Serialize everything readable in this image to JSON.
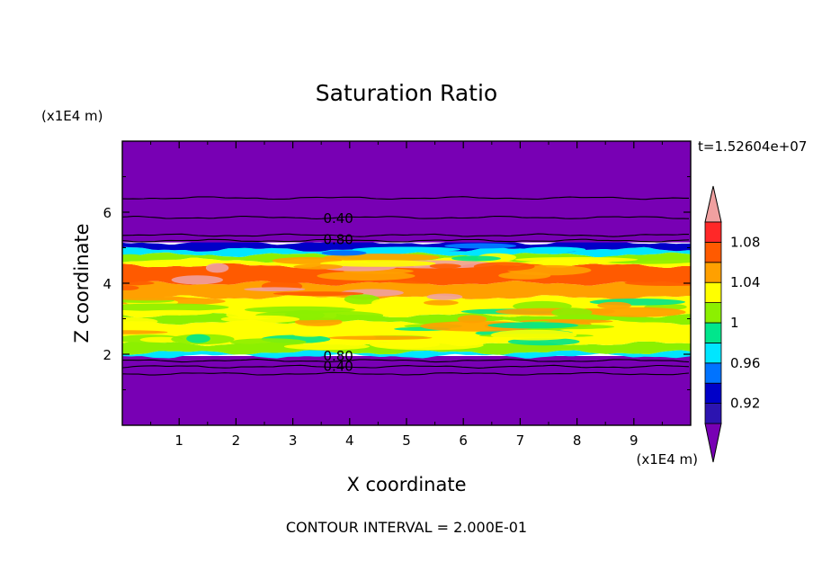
{
  "chart_data": {
    "type": "heatmap",
    "title": "Saturation Ratio",
    "xlabel": "X coordinate",
    "ylabel": "Z coordinate",
    "x_unit": "(x1E4 m)",
    "y_unit": "(x1E4 m)",
    "time_label": "t=1.52604e+07",
    "footer": "CONTOUR INTERVAL = 2.000E-01",
    "xlim": [
      0,
      10
    ],
    "ylim": [
      0,
      8
    ],
    "x_ticks": [
      1,
      2,
      3,
      4,
      5,
      6,
      7,
      8,
      9
    ],
    "y_ticks": [
      2,
      4,
      6
    ],
    "colorbar": {
      "levels": [
        0.9,
        0.92,
        0.94,
        0.96,
        0.98,
        1.0,
        1.02,
        1.04,
        1.06,
        1.08,
        1.1
      ],
      "labels": [
        {
          "value": 0.92,
          "text": "0.92"
        },
        {
          "value": 0.96,
          "text": "0.96"
        },
        {
          "value": 1.0,
          "text": "1"
        },
        {
          "value": 1.04,
          "text": "1.04"
        },
        {
          "value": 1.08,
          "text": "1.08"
        }
      ],
      "colors": [
        "#6a0aa8",
        "#2c14b0",
        "#0000c8",
        "#0073ff",
        "#00e6ff",
        "#00e68c",
        "#8cf000",
        "#ffff00",
        "#ffa000",
        "#ff5a00",
        "#ff2828"
      ],
      "under_color": "#7800b4",
      "over_color": "#f0a0a0"
    },
    "contour_labels": [
      {
        "text": "0.40",
        "x": 3.8,
        "z": 5.85
      },
      {
        "text": "0.80",
        "x": 3.8,
        "z": 5.25
      },
      {
        "text": "0.80",
        "x": 3.8,
        "z": 1.98
      },
      {
        "text": "0.40",
        "x": 3.8,
        "z": 1.68
      }
    ],
    "bands": [
      {
        "z0": 0.0,
        "z1": 1.95,
        "color": "#7800b4"
      },
      {
        "z0": 1.95,
        "z1": 2.05,
        "color": "#00e6ff"
      },
      {
        "z0": 2.05,
        "z1": 2.3,
        "color": "#8cf000"
      },
      {
        "z0": 2.3,
        "z1": 2.9,
        "color": "#ffff00"
      },
      {
        "z0": 2.9,
        "z1": 3.1,
        "color": "#8cf000"
      },
      {
        "z0": 3.1,
        "z1": 3.6,
        "color": "#ffff00"
      },
      {
        "z0": 3.6,
        "z1": 4.0,
        "color": "#ffa000"
      },
      {
        "z0": 4.0,
        "z1": 4.5,
        "color": "#ff5a00"
      },
      {
        "z0": 4.5,
        "z1": 4.65,
        "color": "#ffff00"
      },
      {
        "z0": 4.65,
        "z1": 4.8,
        "color": "#8cf000"
      },
      {
        "z0": 4.8,
        "z1": 4.95,
        "color": "#00e6ff"
      },
      {
        "z0": 4.95,
        "z1": 5.15,
        "color": "#0000c8"
      },
      {
        "z0": 5.15,
        "z1": 8.0,
        "color": "#7800b4"
      }
    ],
    "contour_lines_z": [
      1.45,
      1.65,
      1.82,
      5.2,
      5.35,
      5.85,
      6.4
    ]
  }
}
